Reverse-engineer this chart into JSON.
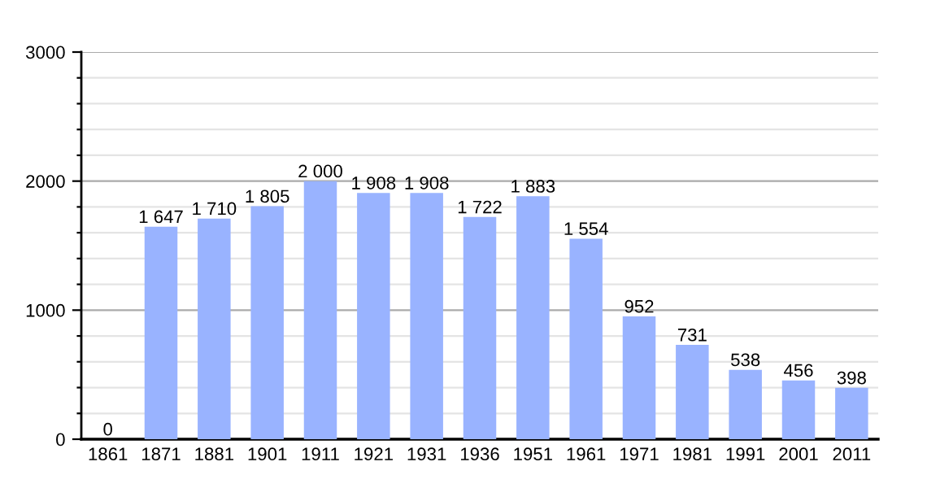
{
  "chart_data": {
    "type": "bar",
    "categories": [
      "1861",
      "1871",
      "1881",
      "1901",
      "1911",
      "1921",
      "1931",
      "1936",
      "1951",
      "1961",
      "1971",
      "1981",
      "1991",
      "2001",
      "2011"
    ],
    "values": [
      0,
      1647,
      1710,
      1805,
      2000,
      1908,
      1908,
      1722,
      1883,
      1554,
      952,
      731,
      538,
      456,
      398
    ],
    "value_labels": [
      "0",
      "1 647",
      "1 710",
      "1 805",
      "2 000",
      "1 908",
      "1 908",
      "1 722",
      "1 883",
      "1 554",
      "952",
      "731",
      "538",
      "456",
      "398"
    ],
    "color": "#99b3ff",
    "ylim": [
      0,
      3000
    ],
    "yticks": [
      0,
      {
        "value": 200,
        "label": null
      },
      {
        "value": 400,
        "label": null
      },
      {
        "value": 600,
        "label": null
      },
      {
        "value": 800,
        "label": null
      },
      1000,
      {
        "value": 1200,
        "label": null
      },
      {
        "value": 1400,
        "label": null
      },
      {
        "value": 1600,
        "label": null
      },
      {
        "value": 1800,
        "label": null
      },
      2000,
      {
        "value": 2200,
        "label": null
      },
      {
        "value": 2400,
        "label": null
      },
      {
        "value": 2600,
        "label": null
      },
      {
        "value": 2800,
        "label": null
      },
      3000
    ],
    "grid": "y",
    "legend": false
  }
}
